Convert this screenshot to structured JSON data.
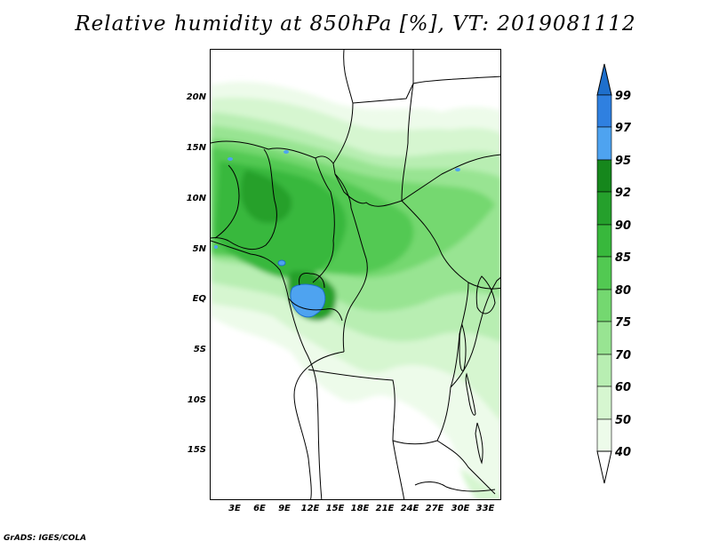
{
  "title": "Relative humidity at 850hPa [%], VT: 2019081112",
  "credit": "GrADS: IGES/COLA",
  "map": {
    "variable": "Relative humidity",
    "level": "850hPa",
    "units": "%",
    "valid_time": "2019081112",
    "lat_labels": [
      "20N",
      "15N",
      "10N",
      "5N",
      "EQ",
      "5S",
      "10S",
      "15S"
    ],
    "lon_labels": [
      "3E",
      "6E",
      "9E",
      "12E",
      "15E",
      "18E",
      "21E",
      "24E",
      "27E",
      "30E",
      "33E"
    ]
  },
  "colorbar": {
    "levels": [
      "99",
      "97",
      "95",
      "92",
      "90",
      "85",
      "80",
      "75",
      "70",
      "60",
      "50",
      "40"
    ],
    "colors": {
      "above_99": "#1e6fcc",
      "97_99": "#2f80e0",
      "95_97": "#4ea3f0",
      "92_95": "#16871c",
      "90_92": "#25a02c",
      "85_90": "#38b83c",
      "80_85": "#52c952",
      "75_80": "#74d870",
      "70_75": "#98e492",
      "60_70": "#b8eeb2",
      "50_60": "#d6f6d0",
      "40_50": "#edfbea",
      "below_40": "#ffffff"
    }
  }
}
